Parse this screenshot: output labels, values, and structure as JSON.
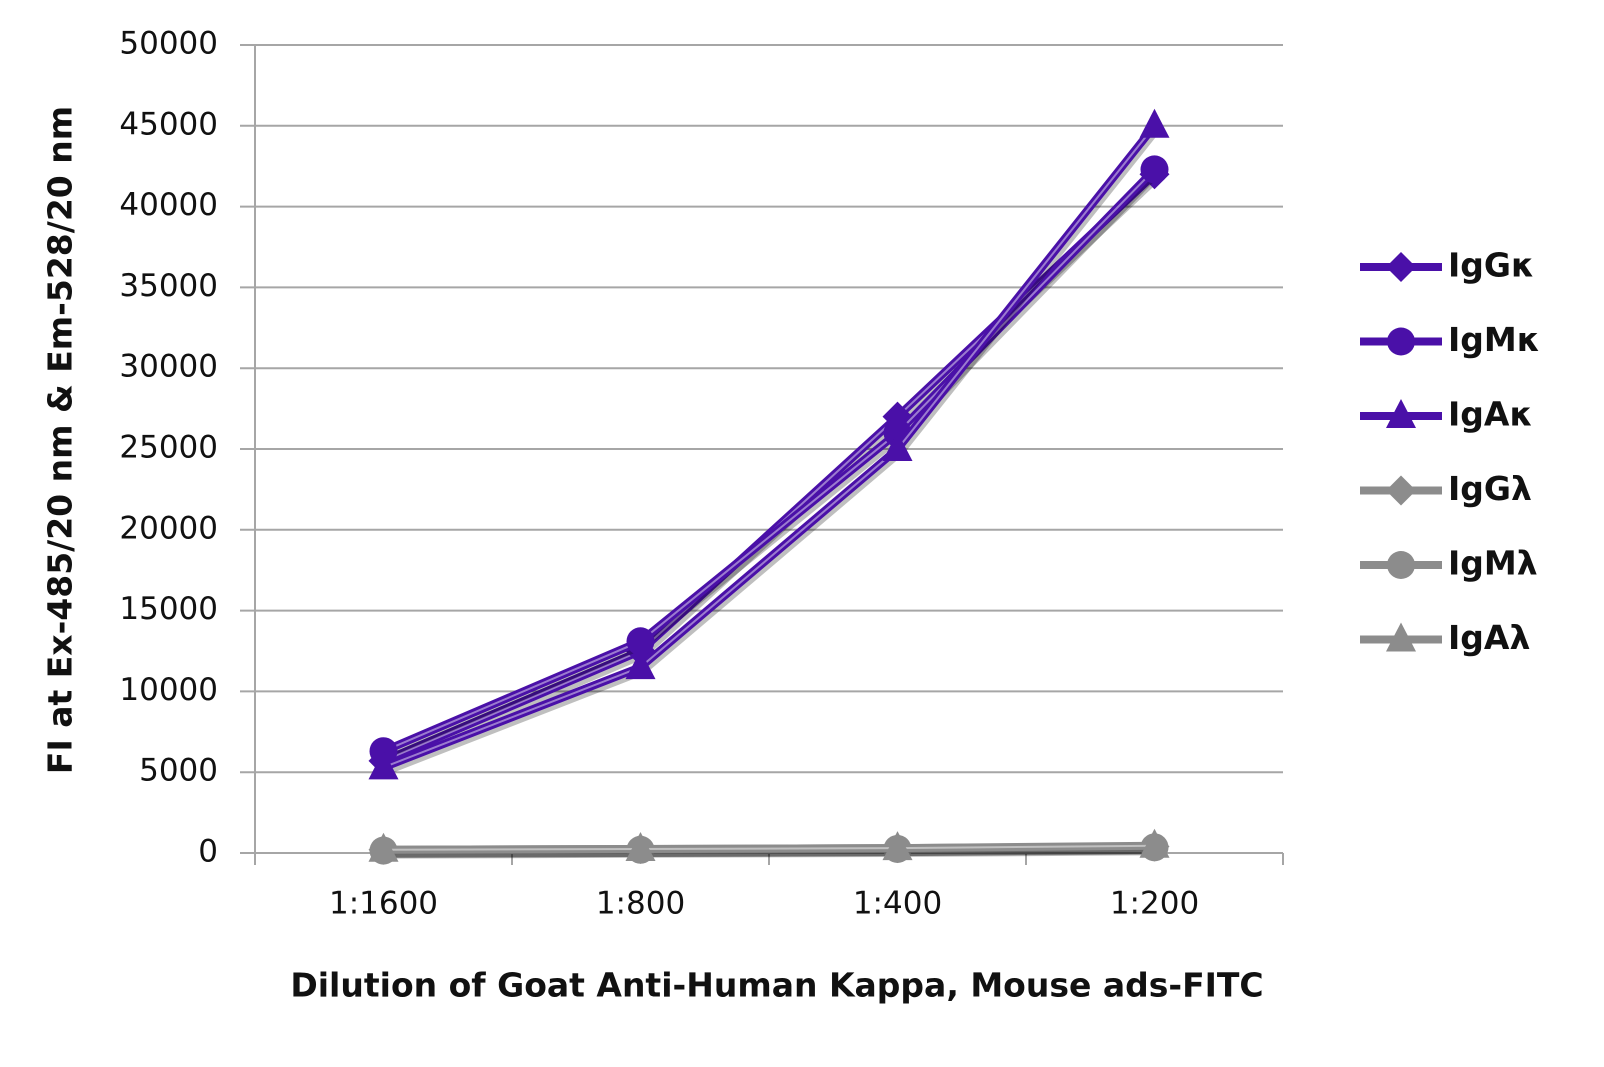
{
  "chart_data": {
    "type": "line",
    "x_label": "Dilution of Goat Anti-Human Kappa, Mouse ads-FITC",
    "y_label": "FI at Ex-485/20 nm & Em-528/20 nm",
    "categories": [
      "1:1600",
      "1:800",
      "1:400",
      "1:200"
    ],
    "series": [
      {
        "name": "IgGκ",
        "color": "#4a10a8",
        "marker": "diamond",
        "values": [
          5700,
          12500,
          27000,
          42000
        ]
      },
      {
        "name": "IgMκ",
        "color": "#4a10a8",
        "marker": "circle",
        "values": [
          6300,
          13100,
          26000,
          42300
        ]
      },
      {
        "name": "IgAκ",
        "color": "#4a10a8",
        "marker": "triangle",
        "values": [
          5300,
          11500,
          25000,
          45000
        ]
      },
      {
        "name": "IgGλ",
        "color": "#8c8c8c",
        "marker": "diamond",
        "values": [
          200,
          250,
          300,
          400
        ]
      },
      {
        "name": "IgMλ",
        "color": "#8c8c8c",
        "marker": "circle",
        "values": [
          150,
          200,
          250,
          350
        ]
      },
      {
        "name": "IgAλ",
        "color": "#8c8c8c",
        "marker": "triangle",
        "values": [
          200,
          250,
          300,
          450
        ]
      }
    ],
    "ylim": [
      0,
      50000
    ],
    "yticks": [
      0,
      5000,
      10000,
      15000,
      20000,
      25000,
      30000,
      35000,
      40000,
      45000,
      50000
    ],
    "grid": true,
    "legend": "right"
  }
}
